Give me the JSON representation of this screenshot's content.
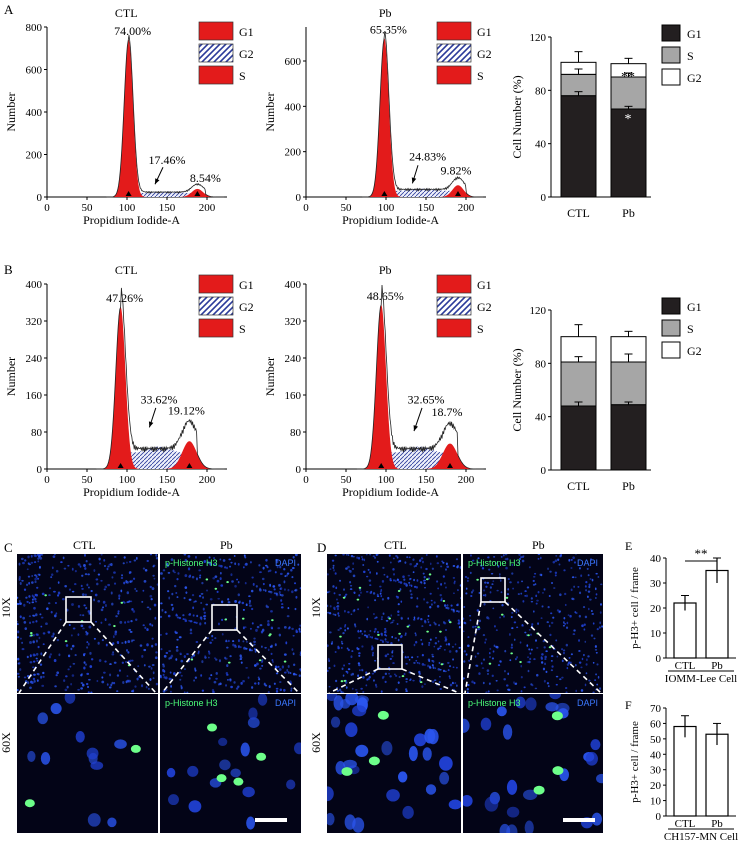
{
  "panel_letters": {
    "A": "A",
    "B": "B",
    "C": "C",
    "D": "D",
    "E": "E",
    "F": "F"
  },
  "histogram_axes": {
    "x_label": "Propidium Iodide-A",
    "y_label": "Number",
    "x_ticks": [
      "0",
      "50",
      "100",
      "150",
      "200"
    ],
    "a_y_ticks": [
      "0",
      "200",
      "400",
      "600",
      "800"
    ],
    "a_pb_y_ticks": [
      "0",
      "200",
      "400",
      "600"
    ],
    "b_y_ticks": [
      "0",
      "80",
      "160",
      "240",
      "320",
      "400"
    ]
  },
  "legend_hist": {
    "g1": "G1",
    "g2": "G2",
    "s": "S"
  },
  "legend_bar": {
    "g1": "G1",
    "s": "S",
    "g2": "G2"
  },
  "colors": {
    "red": "#e31b1b",
    "g1_bar": "#231f20",
    "s_bar": "#a6a6a6",
    "g2_bar": "#ffffff",
    "hatch": "#2b3a9a",
    "micro_bg": "#030417",
    "green": "#4cff7a",
    "blue": "#3b78ff"
  },
  "histA_ctl": {
    "title": "CTL",
    "g1": "74.00%",
    "s": "17.46%",
    "g2": "8.54%"
  },
  "histA_pb": {
    "title": "Pb",
    "g1": "65.35%",
    "s": "24.83%",
    "g2": "9.82%"
  },
  "histB_ctl": {
    "title": "CTL",
    "g1": "47.26%",
    "s": "33.62%",
    "g2": "19.12%"
  },
  "histB_pb": {
    "title": "Pb",
    "g1": "48.65%",
    "s": "32.65%",
    "g2": "18.7%"
  },
  "chart_data": [
    {
      "id": "A-stacked",
      "type": "bar",
      "stacked": true,
      "categories": [
        "CTL",
        "Pb"
      ],
      "series": [
        {
          "name": "G1",
          "values": [
            76,
            66
          ]
        },
        {
          "name": "S",
          "values": [
            16,
            24
          ]
        },
        {
          "name": "G2",
          "values": [
            9,
            10
          ]
        }
      ],
      "ylabel": "Cell Number (%)",
      "ylim": [
        0,
        120
      ],
      "yticks": [
        "0",
        "40",
        "80",
        "120"
      ],
      "annotations": [
        "**",
        "*"
      ]
    },
    {
      "id": "B-stacked",
      "type": "bar",
      "stacked": true,
      "categories": [
        "CTL",
        "Pb"
      ],
      "series": [
        {
          "name": "G1",
          "values": [
            48,
            49
          ]
        },
        {
          "name": "S",
          "values": [
            33,
            32
          ]
        },
        {
          "name": "G2",
          "values": [
            19,
            19
          ]
        }
      ],
      "ylabel": "Cell Number (%)",
      "ylim": [
        0,
        120
      ],
      "yticks": [
        "0",
        "40",
        "80",
        "120"
      ]
    },
    {
      "id": "E",
      "type": "bar",
      "categories": [
        "CTL",
        "Pb"
      ],
      "values": [
        22,
        35
      ],
      "errors": [
        3,
        5
      ],
      "ylabel": "p-H3+ cell / frame",
      "xlabel": "IOMM-Lee Cell",
      "ylim": [
        0,
        40
      ],
      "yticks": [
        "0",
        "10",
        "20",
        "30",
        "40"
      ],
      "annotation": "**"
    },
    {
      "id": "F",
      "type": "bar",
      "categories": [
        "CTL",
        "Pb"
      ],
      "values": [
        58,
        53
      ],
      "errors": [
        7,
        7
      ],
      "ylabel": "p-H3+ cell / frame",
      "xlabel": "CH157-MN Cell",
      "ylim": [
        0,
        70
      ],
      "yticks": [
        "0",
        "10",
        "20",
        "30",
        "40",
        "50",
        "60",
        "70"
      ]
    }
  ],
  "microscopy": {
    "ctl": "CTL",
    "pb": "Pb",
    "mag10": "10X",
    "mag60": "60X",
    "stain_green": "p-Histone H3",
    "stain_blue": "DAPI"
  }
}
